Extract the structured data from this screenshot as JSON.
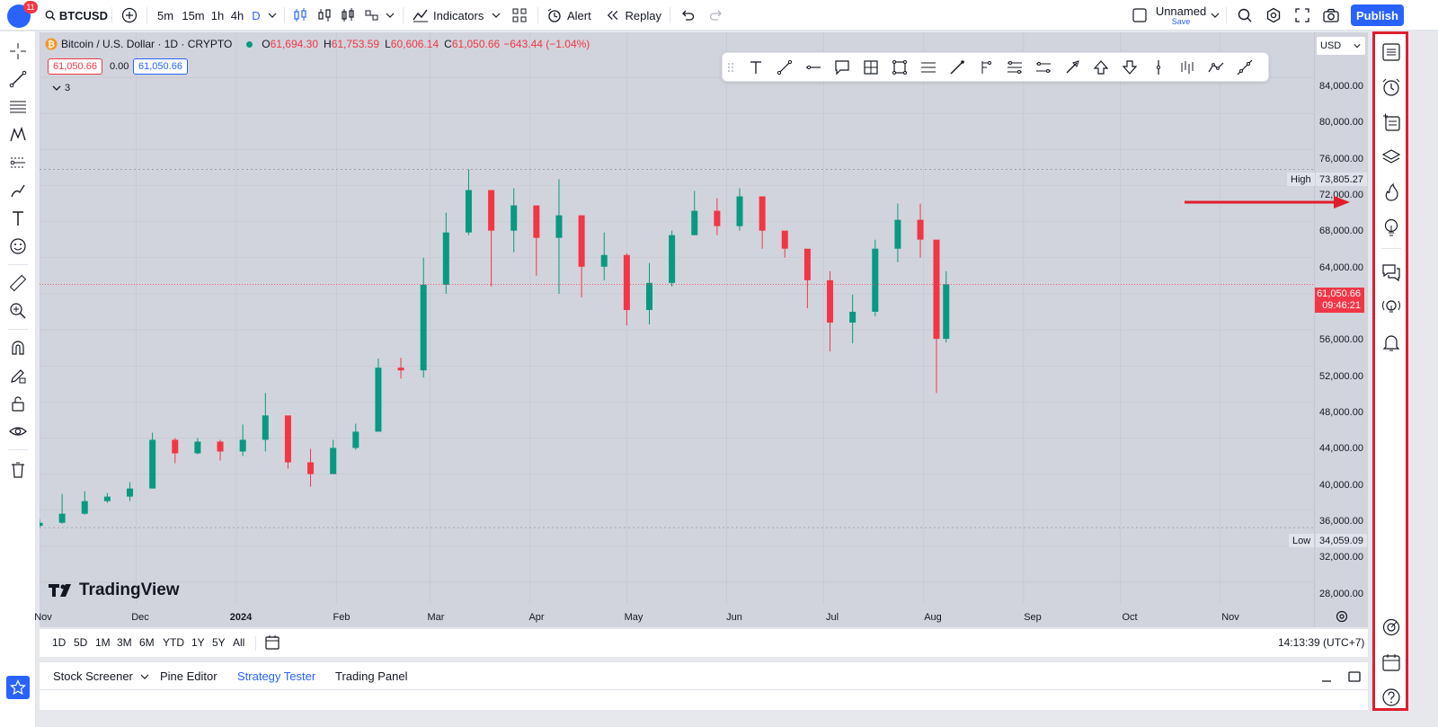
{
  "topbar": {
    "notifications_count": "11",
    "symbol": "BTCUSD",
    "intervals": [
      "5m",
      "15m",
      "1h",
      "4h",
      "D"
    ],
    "indicators_label": "Indicators",
    "alert_label": "Alert",
    "replay_label": "Replay",
    "layout_name": "Unnamed",
    "save_label": "Save",
    "publish_label": "Publish"
  },
  "legend": {
    "title": "Bitcoin / U.S. Dollar · 1D · CRYPTO",
    "open_label": "O",
    "open": "61,694.30",
    "high_label": "H",
    "high": "61,753.59",
    "low_label": "L",
    "low": "60,606.14",
    "close_label": "C",
    "close": "61,050.66",
    "change": "−643.44 (−1.04%)",
    "bid": "61,050.66",
    "spread": "0.00",
    "ask": "61,050.66",
    "indicators_count": "3"
  },
  "price_scale": {
    "currency": "USD",
    "ticks": [
      "84,000.00",
      "80,000.00",
      "76,000.00",
      "72,000.00",
      "68,000.00",
      "64,000.00",
      "60,000.00",
      "56,000.00",
      "52,000.00",
      "48,000.00",
      "44,000.00",
      "40,000.00",
      "36,000.00",
      "32,000.00",
      "28,000.00"
    ],
    "high_label": "High",
    "high_value": "73,805.27",
    "low_label": "Low",
    "low_value": "34,059.09",
    "last_price": "61,050.66",
    "countdown": "09:46:21"
  },
  "time_axis": [
    "Nov",
    "Dec",
    "2024",
    "Feb",
    "Mar",
    "Apr",
    "May",
    "Jun",
    "Jul",
    "Aug",
    "Sep",
    "Oct",
    "Nov"
  ],
  "watermark": "TradingView",
  "bottom": {
    "ranges": [
      "1D",
      "5D",
      "1M",
      "3M",
      "6M",
      "YTD",
      "1Y",
      "5Y",
      "All"
    ],
    "clock": "14:13:39 (UTC+7)"
  },
  "panel_tabs": [
    "Stock Screener",
    "Pine Editor",
    "Strategy Tester",
    "Trading Panel"
  ],
  "colors": {
    "up": "#089981",
    "down": "#f23645",
    "accent": "#2962ff",
    "highlight": "#e01e2b"
  },
  "chart_data": {
    "type": "candlestick",
    "symbol": "BTCUSD",
    "interval": "1D",
    "ylim": [
      26000,
      87000
    ],
    "x_range": [
      "2023-11-01",
      "2024-11-30"
    ],
    "dates": [
      "2023-11-01",
      "2023-11-08",
      "2023-11-15",
      "2023-11-22",
      "2023-11-29",
      "2023-12-06",
      "2023-12-13",
      "2023-12-20",
      "2023-12-27",
      "2024-01-03",
      "2024-01-10",
      "2024-01-17",
      "2024-01-24",
      "2024-01-31",
      "2024-02-07",
      "2024-02-14",
      "2024-02-21",
      "2024-02-28",
      "2024-03-06",
      "2024-03-13",
      "2024-03-20",
      "2024-03-27",
      "2024-04-03",
      "2024-04-10",
      "2024-04-17",
      "2024-04-24",
      "2024-05-01",
      "2024-05-08",
      "2024-05-15",
      "2024-05-22",
      "2024-05-29",
      "2024-06-05",
      "2024-06-12",
      "2024-06-19",
      "2024-06-26",
      "2024-07-03",
      "2024-07-10",
      "2024-07-17",
      "2024-07-24",
      "2024-07-31",
      "2024-08-05",
      "2024-08-08"
    ],
    "close": [
      34600,
      35600,
      37000,
      37500,
      38400,
      43800,
      42300,
      43600,
      42500,
      43800,
      46500,
      41300,
      40000,
      42900,
      44700,
      51800,
      51500,
      61000,
      66800,
      71500,
      67000,
      69800,
      66200,
      68700,
      63000,
      64300,
      58200,
      61200,
      66500,
      69200,
      67500,
      70800,
      67000,
      65000,
      61500,
      56800,
      58000,
      65000,
      68200,
      66000,
      55000,
      61050
    ],
    "high": [
      35000,
      37800,
      38100,
      37900,
      39100,
      44600,
      44000,
      44000,
      43800,
      45500,
      49000,
      43200,
      42800,
      43800,
      45600,
      52800,
      52900,
      64000,
      69000,
      73800,
      68300,
      71700,
      69700,
      72700,
      65500,
      66800,
      64500,
      63400,
      67000,
      71400,
      70600,
      71700,
      68200,
      66500,
      63800,
      62500,
      59900,
      66000,
      70000,
      70000,
      62000,
      62500
    ],
    "low": [
      34059,
      34500,
      35500,
      36800,
      37000,
      38400,
      41200,
      42200,
      41500,
      42000,
      42500,
      40600,
      38600,
      41800,
      42700,
      47500,
      50600,
      50700,
      60000,
      66500,
      60800,
      64600,
      62000,
      60000,
      59600,
      61500,
      56500,
      56600,
      60800,
      66500,
      66500,
      67000,
      65000,
      64000,
      58400,
      53600,
      54500,
      57500,
      63500,
      64000,
      49000,
      54600
    ]
  }
}
